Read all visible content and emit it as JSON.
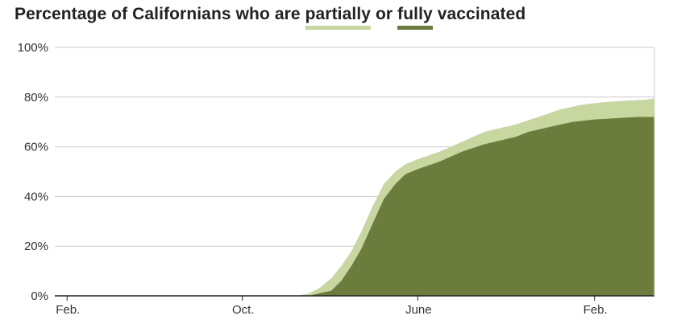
{
  "title": {
    "before": "Percentage of Californians who are ",
    "partial_word": "partially",
    "middle": " or ",
    "full_word": "fully",
    "after": " vaccinated"
  },
  "colors": {
    "partially": "#c8d6a0",
    "fully": "#6b7c3c",
    "grid": "#cccccc",
    "axis": "#222222",
    "text": "#333333"
  },
  "chart_data": {
    "type": "area",
    "x_unit": "month",
    "xlim": [
      "2020-01-15",
      "2022-04-25"
    ],
    "ylim": [
      0,
      100
    ],
    "y_ticks": [
      0,
      20,
      40,
      60,
      80,
      100
    ],
    "y_tick_labels": [
      "0%",
      "20%",
      "40%",
      "60%",
      "80%",
      "100%"
    ],
    "x_ticks": [
      "2020-02-01",
      "2020-10-01",
      "2021-06-01",
      "2022-02-01"
    ],
    "x_tick_labels": [
      "Feb.",
      "Oct.",
      "June",
      "Feb."
    ],
    "grid": true,
    "legend": "in title",
    "series": [
      {
        "name": "partially",
        "x": [
          "2020-12-15",
          "2021-01-01",
          "2021-01-15",
          "2021-02-01",
          "2021-02-15",
          "2021-03-01",
          "2021-03-15",
          "2021-04-01",
          "2021-04-15",
          "2021-05-01",
          "2021-05-15",
          "2021-06-01",
          "2021-07-01",
          "2021-08-01",
          "2021-09-01",
          "2021-09-15",
          "2021-10-15",
          "2021-11-15",
          "2021-12-15",
          "2022-01-15",
          "2022-02-15",
          "2022-03-15",
          "2022-04-15",
          "2022-04-25"
        ],
        "values": [
          0,
          1,
          3,
          7,
          12,
          18,
          26,
          37,
          45,
          50,
          53,
          55,
          58,
          62,
          66,
          67,
          69,
          72,
          75,
          77,
          78,
          78.5,
          79,
          79.5
        ]
      },
      {
        "name": "fully",
        "x": [
          "2021-01-01",
          "2021-01-15",
          "2021-02-01",
          "2021-02-15",
          "2021-03-01",
          "2021-03-15",
          "2021-04-01",
          "2021-04-15",
          "2021-05-01",
          "2021-05-15",
          "2021-06-01",
          "2021-07-01",
          "2021-08-01",
          "2021-09-01",
          "2021-10-15",
          "2021-11-01",
          "2021-12-01",
          "2022-01-01",
          "2022-02-01",
          "2022-03-01",
          "2022-04-01",
          "2022-04-25"
        ],
        "values": [
          0,
          1,
          2,
          6,
          12,
          19,
          30,
          39,
          45,
          49,
          51,
          54,
          58,
          61,
          64,
          66,
          68,
          70,
          71,
          71.5,
          72,
          72
        ]
      }
    ]
  }
}
